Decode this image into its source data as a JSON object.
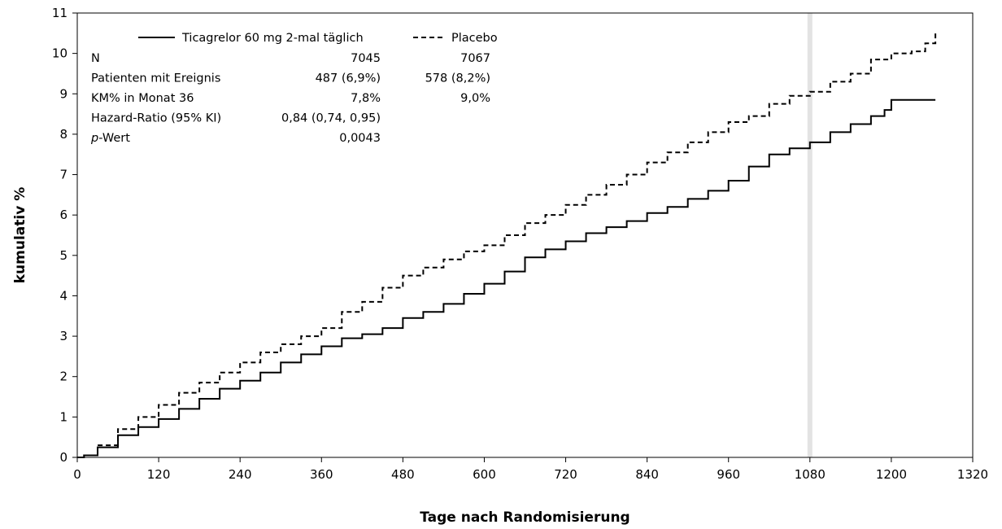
{
  "chart_data": {
    "type": "line",
    "xlabel": "Tage nach Randomisierung",
    "ylabel": "kumulativ %",
    "xlim": [
      0,
      1320
    ],
    "ylim": [
      0,
      11
    ],
    "xticks": [
      0,
      120,
      240,
      360,
      480,
      600,
      720,
      840,
      960,
      1080,
      1200,
      1320
    ],
    "yticks": [
      0,
      1,
      2,
      3,
      4,
      5,
      6,
      7,
      8,
      9,
      10,
      11
    ],
    "grid": false,
    "highlight_x": 1080,
    "legend_position": "top-left",
    "series": [
      {
        "name": "Ticagrelor 60 mg 2-mal täglich",
        "style": "solid",
        "color": "#000000",
        "x": [
          0,
          10,
          30,
          60,
          90,
          120,
          150,
          180,
          210,
          240,
          270,
          300,
          330,
          360,
          390,
          420,
          450,
          480,
          510,
          540,
          570,
          600,
          630,
          660,
          690,
          720,
          750,
          780,
          810,
          840,
          870,
          900,
          930,
          960,
          990,
          1020,
          1050,
          1080,
          1110,
          1140,
          1170,
          1190,
          1200,
          1240,
          1265
        ],
        "y": [
          0,
          0.05,
          0.25,
          0.55,
          0.75,
          0.95,
          1.2,
          1.45,
          1.7,
          1.9,
          2.1,
          2.35,
          2.55,
          2.75,
          2.95,
          3.05,
          3.2,
          3.45,
          3.6,
          3.8,
          4.05,
          4.3,
          4.6,
          4.95,
          5.15,
          5.35,
          5.55,
          5.7,
          5.85,
          6.05,
          6.2,
          6.4,
          6.6,
          6.85,
          7.2,
          7.5,
          7.65,
          7.8,
          8.05,
          8.25,
          8.45,
          8.6,
          8.85,
          8.85,
          8.85
        ]
      },
      {
        "name": "Placebo",
        "style": "dashed",
        "color": "#000000",
        "x": [
          0,
          10,
          30,
          60,
          90,
          120,
          150,
          180,
          210,
          240,
          270,
          300,
          330,
          360,
          390,
          420,
          450,
          480,
          510,
          540,
          570,
          600,
          630,
          660,
          690,
          720,
          750,
          780,
          810,
          840,
          870,
          900,
          930,
          960,
          990,
          1020,
          1050,
          1080,
          1110,
          1140,
          1170,
          1200,
          1230,
          1250,
          1265
        ],
        "y": [
          0,
          0.05,
          0.3,
          0.7,
          1.0,
          1.3,
          1.6,
          1.85,
          2.1,
          2.35,
          2.6,
          2.8,
          3.0,
          3.2,
          3.6,
          3.85,
          4.2,
          4.5,
          4.7,
          4.9,
          5.1,
          5.25,
          5.5,
          5.8,
          6.0,
          6.25,
          6.5,
          6.75,
          7.0,
          7.3,
          7.55,
          7.8,
          8.05,
          8.3,
          8.45,
          8.75,
          8.95,
          9.05,
          9.3,
          9.5,
          9.85,
          10.0,
          10.05,
          10.25,
          10.55
        ]
      }
    ]
  },
  "stats_table": {
    "rows": [
      {
        "label": "N",
        "col1": "7045",
        "col2": "7067",
        "label_italic_prefix": "",
        "label_rest": ""
      },
      {
        "label": "Patienten mit Ereignis",
        "col1": "487 (6,9%)",
        "col2": "578 (8,2%)",
        "label_italic_prefix": "",
        "label_rest": ""
      },
      {
        "label": "KM% in Monat 36",
        "col1": "7,8%",
        "col2": "9,0%",
        "label_italic_prefix": "",
        "label_rest": ""
      },
      {
        "label": "Hazard-Ratio (95% KI)",
        "col1": "0,84 (0,74, 0,95)",
        "col2": "",
        "label_italic_prefix": "",
        "label_rest": ""
      },
      {
        "label": "",
        "col1": "0,0043",
        "col2": "",
        "label_italic_prefix": "p",
        "label_rest": "-Wert"
      }
    ]
  }
}
